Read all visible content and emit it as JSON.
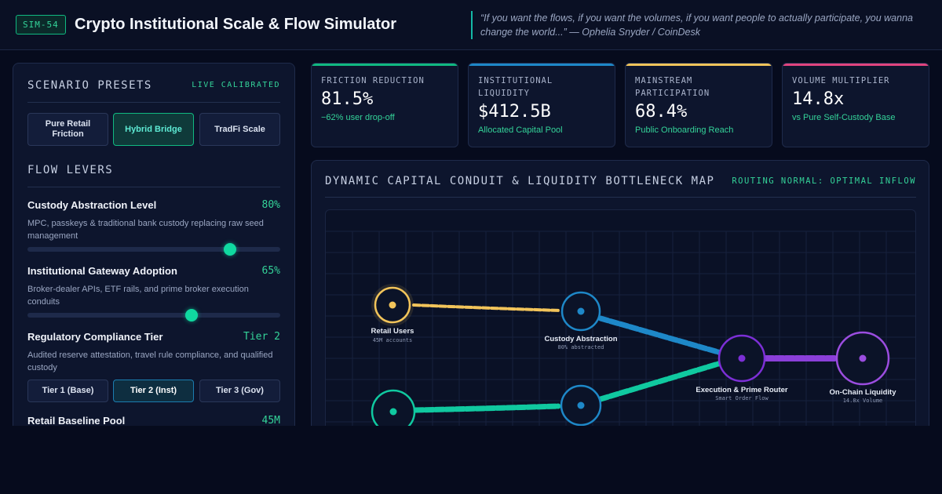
{
  "header": {
    "badge": "SIM-54",
    "title": "Crypto Institutional Scale & Flow Simulator",
    "quote": "“If you want the flows, if you want the volumes, if you want people to actually participate, you wanna change the world...” — Ophelia Snyder / CoinDesk"
  },
  "presets": {
    "title": "SCENARIO PRESETS",
    "tag": "LIVE CALIBRATED",
    "buttons": [
      "Pure Retail Friction",
      "Hybrid Bridge",
      "TradFi Scale"
    ],
    "active": "Hybrid Bridge"
  },
  "levers": {
    "title": "FLOW LEVERS",
    "custody": {
      "name": "Custody Abstraction Level",
      "value": "80%",
      "level": 0.8,
      "desc": "MPC, passkeys & traditional bank custody replacing raw seed management"
    },
    "gateway": {
      "name": "Institutional Gateway Adoption",
      "value": "65%",
      "level": 0.65,
      "desc": "Broker-dealer APIs, ETF rails, and prime broker execution conduits"
    },
    "compliance": {
      "name": "Regulatory Compliance Tier",
      "value": "Tier 2",
      "desc": "Audited reserve attestation, travel rule compliance, and qualified custody",
      "tiers": [
        "Tier 1 (Base)",
        "Tier 2 (Inst)",
        "Tier 3 (Gov)"
      ],
      "active": "Tier 2 (Inst)"
    },
    "retail_pool": {
      "name": "Retail Baseline Pool",
      "value": "45M"
    }
  },
  "kpis": [
    {
      "label": "FRICTION REDUCTION",
      "value": "81.5%",
      "sub": "−62% user drop-off",
      "color": "#10b981"
    },
    {
      "label": "INSTITUTIONAL LIQUIDITY",
      "value": "$412.5B",
      "sub": "Allocated Capital Pool",
      "color": "#1e88c8"
    },
    {
      "label": "MAINSTREAM PARTICIPATION",
      "value": "68.4%",
      "sub": "Public Onboarding Reach",
      "color": "#f2c45a"
    },
    {
      "label": "VOLUME MULTIPLIER",
      "value": "14.8x",
      "sub": "vs Pure Self-Custody Base",
      "color": "#e0447f"
    }
  ],
  "map": {
    "title": "DYNAMIC CAPITAL CONDUIT & LIQUIDITY BOTTLENECK MAP",
    "status": "ROUTING NORMAL: OPTIMAL INFLOW",
    "nodes": {
      "retail": {
        "label": "Retail Users",
        "sub": "45M accounts",
        "color": "#f2c45a"
      },
      "custody": {
        "label": "Custody Abstraction",
        "sub": "80% abstracted",
        "color": "#1e88c8"
      },
      "router": {
        "label": "Execution & Prime Router",
        "sub": "Smart Order Flow",
        "color": "#7c2fd6"
      },
      "onchain": {
        "label": "On-Chain Liquidity",
        "sub": "14.8x Volume",
        "color": "#9b4de0"
      }
    },
    "colors": {
      "retail_flow": "#f2c45a",
      "custody_flow": "#1e88c8",
      "inst_flow": "#10c9a0",
      "chain_flow": "#8b3fd9"
    }
  }
}
